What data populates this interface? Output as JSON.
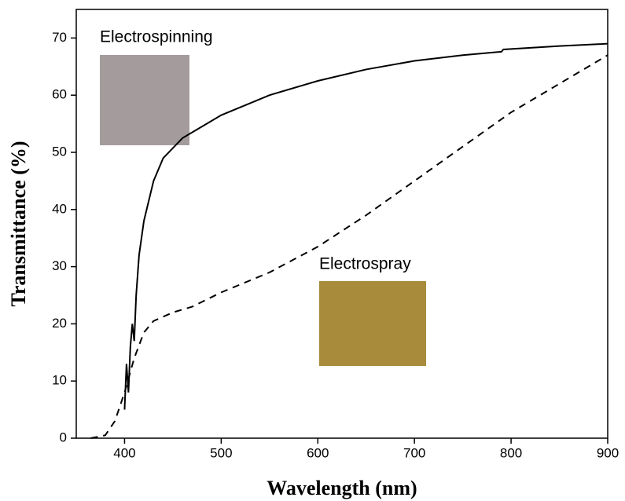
{
  "chart_data": {
    "type": "line",
    "xlabel": "Wavelength (nm)",
    "ylabel": "Transmittance (%)",
    "xlim": [
      350,
      900
    ],
    "ylim": [
      0,
      75
    ],
    "xticks": [
      400,
      500,
      600,
      700,
      800,
      900
    ],
    "yticks": [
      0,
      10,
      20,
      30,
      40,
      50,
      60,
      70
    ],
    "series": [
      {
        "name": "Electrospinning",
        "color": "#000000",
        "dash": false,
        "x": [
          400,
          402,
          404,
          406,
          408,
          410,
          412,
          415,
          420,
          430,
          440,
          460,
          480,
          500,
          550,
          600,
          650,
          700,
          750,
          790,
          792,
          850,
          900
        ],
        "values": [
          5,
          13,
          8,
          16,
          20,
          17,
          25,
          32,
          38,
          45,
          49,
          52.5,
          54.5,
          56.5,
          60,
          62.5,
          64.5,
          66,
          67,
          67.6,
          68,
          68.6,
          69
        ]
      },
      {
        "name": "Electrospray",
        "color": "#000000",
        "dash": true,
        "x": [
          365,
          380,
          390,
          400,
          410,
          420,
          430,
          450,
          470,
          500,
          550,
          600,
          650,
          700,
          750,
          800,
          850,
          900
        ],
        "values": [
          0,
          0.5,
          3,
          8,
          14,
          18.5,
          20.5,
          22,
          23,
          25.5,
          29,
          33.5,
          39,
          45,
          51,
          57,
          62,
          67
        ]
      }
    ]
  }
}
